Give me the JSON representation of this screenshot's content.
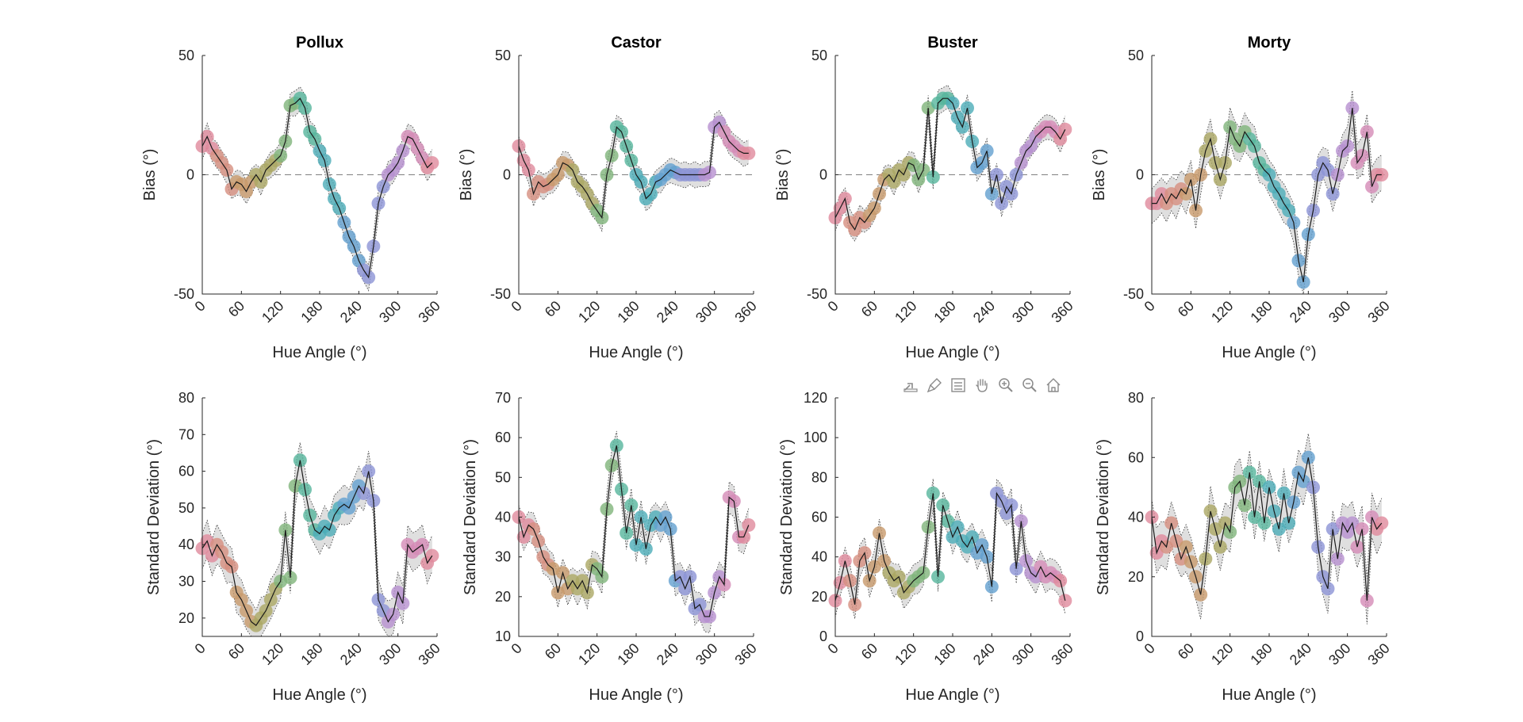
{
  "toolbar": {
    "icons": [
      "export-icon",
      "brush-icon",
      "legend-icon",
      "pan-hand-icon",
      "zoom-in-icon",
      "zoom-out-icon",
      "home-icon"
    ]
  },
  "colors": {
    "line": "#1a1a1a",
    "band": "#d9d9d9",
    "zero_line": "#808080",
    "hue_markers": [
      "#e08a9c",
      "#d68f7f",
      "#c89a6c",
      "#aba864",
      "#7fb47b",
      "#56b59c",
      "#4cadb8",
      "#63a0cf",
      "#8c94d6",
      "#b690d0",
      "#d48bb6",
      "#e08a9c"
    ]
  },
  "chart_data": [
    {
      "type": "line",
      "panel": "bias",
      "title": "Pollux",
      "xlabel": "Hue Angle (°)",
      "ylabel": "Bias (°)",
      "xlim": [
        0,
        360
      ],
      "ylim": [
        -50,
        50
      ],
      "xticks": [
        0,
        60,
        120,
        180,
        240,
        300,
        360
      ],
      "yticks": [
        -50,
        0,
        50
      ],
      "zero_line": true,
      "x": [
        0,
        7.5,
        15,
        22.5,
        30,
        37.5,
        45,
        52.5,
        60,
        67.5,
        75,
        82.5,
        90,
        97.5,
        105,
        112.5,
        120,
        127.5,
        135,
        142.5,
        150,
        157.5,
        165,
        172.5,
        180,
        187.5,
        195,
        202.5,
        210,
        217.5,
        225,
        232.5,
        240,
        247.5,
        255,
        262.5,
        270,
        277.5,
        285,
        292.5,
        300,
        307.5,
        315,
        322.5,
        330,
        337.5,
        345,
        352.5
      ],
      "y": [
        12,
        16,
        11,
        8,
        5,
        2,
        -6,
        -3,
        -4,
        -7,
        -3,
        0,
        -3,
        2,
        4,
        6,
        8,
        14,
        29,
        30,
        32,
        28,
        18,
        15,
        10,
        6,
        -4,
        -10,
        -14,
        -20,
        -26,
        -30,
        -36,
        -40,
        -43,
        -30,
        -12,
        -5,
        0,
        2,
        5,
        10,
        16,
        15,
        11,
        7,
        3,
        5
      ],
      "band_halfwidth": 4
    },
    {
      "type": "line",
      "panel": "bias",
      "title": "Castor",
      "xlabel": "Hue Angle (°)",
      "ylabel": "Bias (°)",
      "xlim": [
        0,
        360
      ],
      "ylim": [
        -50,
        50
      ],
      "xticks": [
        0,
        60,
        120,
        180,
        240,
        300,
        360
      ],
      "yticks": [
        -50,
        0,
        50
      ],
      "zero_line": true,
      "x": [
        0,
        7.5,
        15,
        22.5,
        30,
        37.5,
        45,
        52.5,
        60,
        67.5,
        75,
        82.5,
        90,
        97.5,
        105,
        112.5,
        120,
        127.5,
        135,
        142.5,
        150,
        157.5,
        165,
        172.5,
        180,
        187.5,
        195,
        202.5,
        210,
        217.5,
        225,
        232.5,
        240,
        247.5,
        255,
        262.5,
        270,
        277.5,
        285,
        292.5,
        300,
        307.5,
        315,
        322.5,
        330,
        337.5,
        345,
        352.5
      ],
      "y": [
        12,
        6,
        2,
        -8,
        -3,
        -5,
        -4,
        -2,
        0,
        5,
        4,
        2,
        -3,
        -5,
        -8,
        -12,
        -15,
        -18,
        0,
        8,
        20,
        18,
        12,
        6,
        0,
        -3,
        -10,
        -8,
        -3,
        -2,
        0,
        2,
        1,
        0,
        0,
        0,
        0,
        0,
        0,
        1,
        20,
        22,
        18,
        14,
        12,
        10,
        9,
        9
      ],
      "band_halfwidth": 4
    },
    {
      "type": "line",
      "panel": "bias",
      "title": "Buster",
      "xlabel": "Hue Angle (°)",
      "ylabel": "Bias (°)",
      "xlim": [
        0,
        360
      ],
      "ylim": [
        -50,
        50
      ],
      "xticks": [
        0,
        60,
        120,
        180,
        240,
        300,
        360
      ],
      "yticks": [
        -50,
        0,
        50
      ],
      "zero_line": true,
      "x": [
        0,
        7.5,
        15,
        22.5,
        30,
        37.5,
        45,
        52.5,
        60,
        67.5,
        75,
        82.5,
        90,
        97.5,
        105,
        112.5,
        120,
        127.5,
        135,
        142.5,
        150,
        157.5,
        165,
        172.5,
        180,
        187.5,
        195,
        202.5,
        210,
        217.5,
        225,
        232.5,
        240,
        247.5,
        255,
        262.5,
        270,
        277.5,
        285,
        292.5,
        300,
        307.5,
        315,
        322.5,
        330,
        337.5,
        345,
        352.5
      ],
      "y": [
        -18,
        -14,
        -10,
        -20,
        -23,
        -18,
        -20,
        -17,
        -14,
        -8,
        -2,
        0,
        -3,
        2,
        0,
        5,
        4,
        -2,
        2,
        28,
        -1,
        30,
        32,
        32,
        30,
        24,
        20,
        28,
        14,
        3,
        5,
        10,
        -8,
        0,
        -12,
        -5,
        -8,
        0,
        5,
        10,
        12,
        16,
        18,
        20,
        20,
        18,
        15,
        19
      ],
      "band_halfwidth": 4
    },
    {
      "type": "line",
      "panel": "bias",
      "title": "Morty",
      "xlabel": "Hue Angle (°)",
      "ylabel": "Bias (°)",
      "xlim": [
        0,
        360
      ],
      "ylim": [
        -50,
        50
      ],
      "xticks": [
        0,
        60,
        120,
        180,
        240,
        300,
        360
      ],
      "yticks": [
        -50,
        0,
        50
      ],
      "zero_line": true,
      "x": [
        0,
        7.5,
        15,
        22.5,
        30,
        37.5,
        45,
        52.5,
        60,
        67.5,
        75,
        82.5,
        90,
        97.5,
        105,
        112.5,
        120,
        127.5,
        135,
        142.5,
        150,
        157.5,
        165,
        172.5,
        180,
        187.5,
        195,
        202.5,
        210,
        217.5,
        225,
        232.5,
        240,
        247.5,
        255,
        262.5,
        270,
        277.5,
        285,
        292.5,
        300,
        307.5,
        315,
        322.5,
        330,
        337.5,
        345,
        352.5
      ],
      "y": [
        -12,
        -12,
        -8,
        -12,
        -8,
        -10,
        -6,
        -8,
        -2,
        -15,
        0,
        10,
        15,
        5,
        -2,
        5,
        20,
        15,
        12,
        18,
        15,
        12,
        5,
        2,
        0,
        -5,
        -8,
        -12,
        -15,
        -20,
        -36,
        -45,
        -25,
        -15,
        0,
        5,
        2,
        -8,
        0,
        10,
        12,
        28,
        5,
        8,
        18,
        -5,
        0,
        0
      ],
      "band_halfwidth": 6
    },
    {
      "type": "line",
      "panel": "sd",
      "title": "",
      "xlabel": "Hue Angle (°)",
      "ylabel": "Standard Deviation (°)",
      "xlim": [
        0,
        360
      ],
      "ylim": [
        15,
        80
      ],
      "xticks": [
        0,
        60,
        120,
        180,
        240,
        300,
        360
      ],
      "yticks": [
        20,
        30,
        40,
        50,
        60,
        70,
        80
      ],
      "zero_line": false,
      "x": [
        0,
        7.5,
        15,
        22.5,
        30,
        37.5,
        45,
        52.5,
        60,
        67.5,
        75,
        82.5,
        90,
        97.5,
        105,
        112.5,
        120,
        127.5,
        135,
        142.5,
        150,
        157.5,
        165,
        172.5,
        180,
        187.5,
        195,
        202.5,
        210,
        217.5,
        225,
        232.5,
        240,
        247.5,
        255,
        262.5,
        270,
        277.5,
        285,
        292.5,
        300,
        307.5,
        315,
        322.5,
        330,
        337.5,
        345,
        352.5
      ],
      "y": [
        39,
        41,
        37,
        40,
        38,
        35,
        34,
        27,
        25,
        22,
        19,
        18,
        20,
        22,
        25,
        28,
        30,
        44,
        31,
        56,
        63,
        55,
        48,
        44,
        43,
        45,
        44,
        48,
        50,
        51,
        50,
        53,
        56,
        54,
        60,
        52,
        25,
        22,
        19,
        21,
        27,
        24,
        40,
        38,
        39,
        40,
        35,
        37
      ],
      "band_halfwidth": 4
    },
    {
      "type": "line",
      "panel": "sd",
      "title": "",
      "xlabel": "Hue Angle (°)",
      "ylabel": "Standard Deviation (°)",
      "xlim": [
        0,
        360
      ],
      "ylim": [
        10,
        70
      ],
      "xticks": [
        0,
        60,
        120,
        180,
        240,
        300,
        360
      ],
      "yticks": [
        10,
        20,
        30,
        40,
        50,
        60,
        70
      ],
      "zero_line": false,
      "x": [
        0,
        7.5,
        15,
        22.5,
        30,
        37.5,
        45,
        52.5,
        60,
        67.5,
        75,
        82.5,
        90,
        97.5,
        105,
        112.5,
        120,
        127.5,
        135,
        142.5,
        150,
        157.5,
        165,
        172.5,
        180,
        187.5,
        195,
        202.5,
        210,
        217.5,
        225,
        232.5,
        240,
        247.5,
        255,
        262.5,
        270,
        277.5,
        285,
        292.5,
        300,
        307.5,
        315,
        322.5,
        330,
        337.5,
        345,
        352.5
      ],
      "y": [
        40,
        35,
        38,
        37,
        34,
        30,
        28,
        27,
        21,
        26,
        22,
        24,
        22,
        24,
        21,
        28,
        27,
        25,
        42,
        53,
        58,
        47,
        36,
        43,
        33,
        40,
        32,
        38,
        40,
        38,
        40,
        37,
        24,
        25,
        22,
        25,
        17,
        18,
        15,
        15,
        21,
        25,
        23,
        45,
        44,
        35,
        35,
        38
      ],
      "band_halfwidth": 3
    },
    {
      "type": "line",
      "panel": "sd",
      "title": "",
      "xlabel": "Hue Angle (°)",
      "ylabel": "Standard Deviation (°)",
      "xlim": [
        0,
        360
      ],
      "ylim": [
        0,
        120
      ],
      "xticks": [
        0,
        60,
        120,
        180,
        240,
        300,
        360
      ],
      "yticks": [
        0,
        20,
        40,
        60,
        80,
        100,
        120
      ],
      "zero_line": false,
      "x": [
        0,
        7.5,
        15,
        22.5,
        30,
        37.5,
        45,
        52.5,
        60,
        67.5,
        75,
        82.5,
        90,
        97.5,
        105,
        112.5,
        120,
        127.5,
        135,
        142.5,
        150,
        157.5,
        165,
        172.5,
        180,
        187.5,
        195,
        202.5,
        210,
        217.5,
        225,
        232.5,
        240,
        247.5,
        255,
        262.5,
        270,
        277.5,
        285,
        292.5,
        300,
        307.5,
        315,
        322.5,
        330,
        337.5,
        345,
        352.5
      ],
      "y": [
        18,
        27,
        38,
        28,
        16,
        38,
        42,
        28,
        35,
        52,
        38,
        32,
        28,
        30,
        22,
        25,
        28,
        30,
        32,
        55,
        72,
        30,
        66,
        58,
        50,
        55,
        48,
        45,
        50,
        42,
        46,
        40,
        25,
        72,
        68,
        62,
        66,
        34,
        58,
        38,
        32,
        30,
        35,
        30,
        32,
        30,
        28,
        18
      ],
      "band_halfwidth": 6
    },
    {
      "type": "line",
      "panel": "sd",
      "title": "",
      "xlabel": "Hue Angle (°)",
      "ylabel": "Standard Deviation (°)",
      "xlim": [
        0,
        360
      ],
      "ylim": [
        0,
        80
      ],
      "xticks": [
        0,
        60,
        120,
        180,
        240,
        300,
        360
      ],
      "yticks": [
        0,
        20,
        40,
        60,
        80
      ],
      "zero_line": false,
      "x": [
        0,
        7.5,
        15,
        22.5,
        30,
        37.5,
        45,
        52.5,
        60,
        67.5,
        75,
        82.5,
        90,
        97.5,
        105,
        112.5,
        120,
        127.5,
        135,
        142.5,
        150,
        157.5,
        165,
        172.5,
        180,
        187.5,
        195,
        202.5,
        210,
        217.5,
        225,
        232.5,
        240,
        247.5,
        255,
        262.5,
        270,
        277.5,
        285,
        292.5,
        300,
        307.5,
        315,
        322.5,
        330,
        337.5,
        345,
        352.5
      ],
      "y": [
        40,
        28,
        32,
        30,
        38,
        32,
        26,
        30,
        25,
        20,
        14,
        26,
        42,
        36,
        30,
        38,
        35,
        50,
        52,
        44,
        55,
        40,
        52,
        38,
        50,
        42,
        36,
        48,
        38,
        45,
        55,
        52,
        60,
        50,
        30,
        20,
        16,
        36,
        26,
        38,
        35,
        38,
        30,
        36,
        12,
        40,
        36,
        38
      ],
      "band_halfwidth": 6
    }
  ]
}
